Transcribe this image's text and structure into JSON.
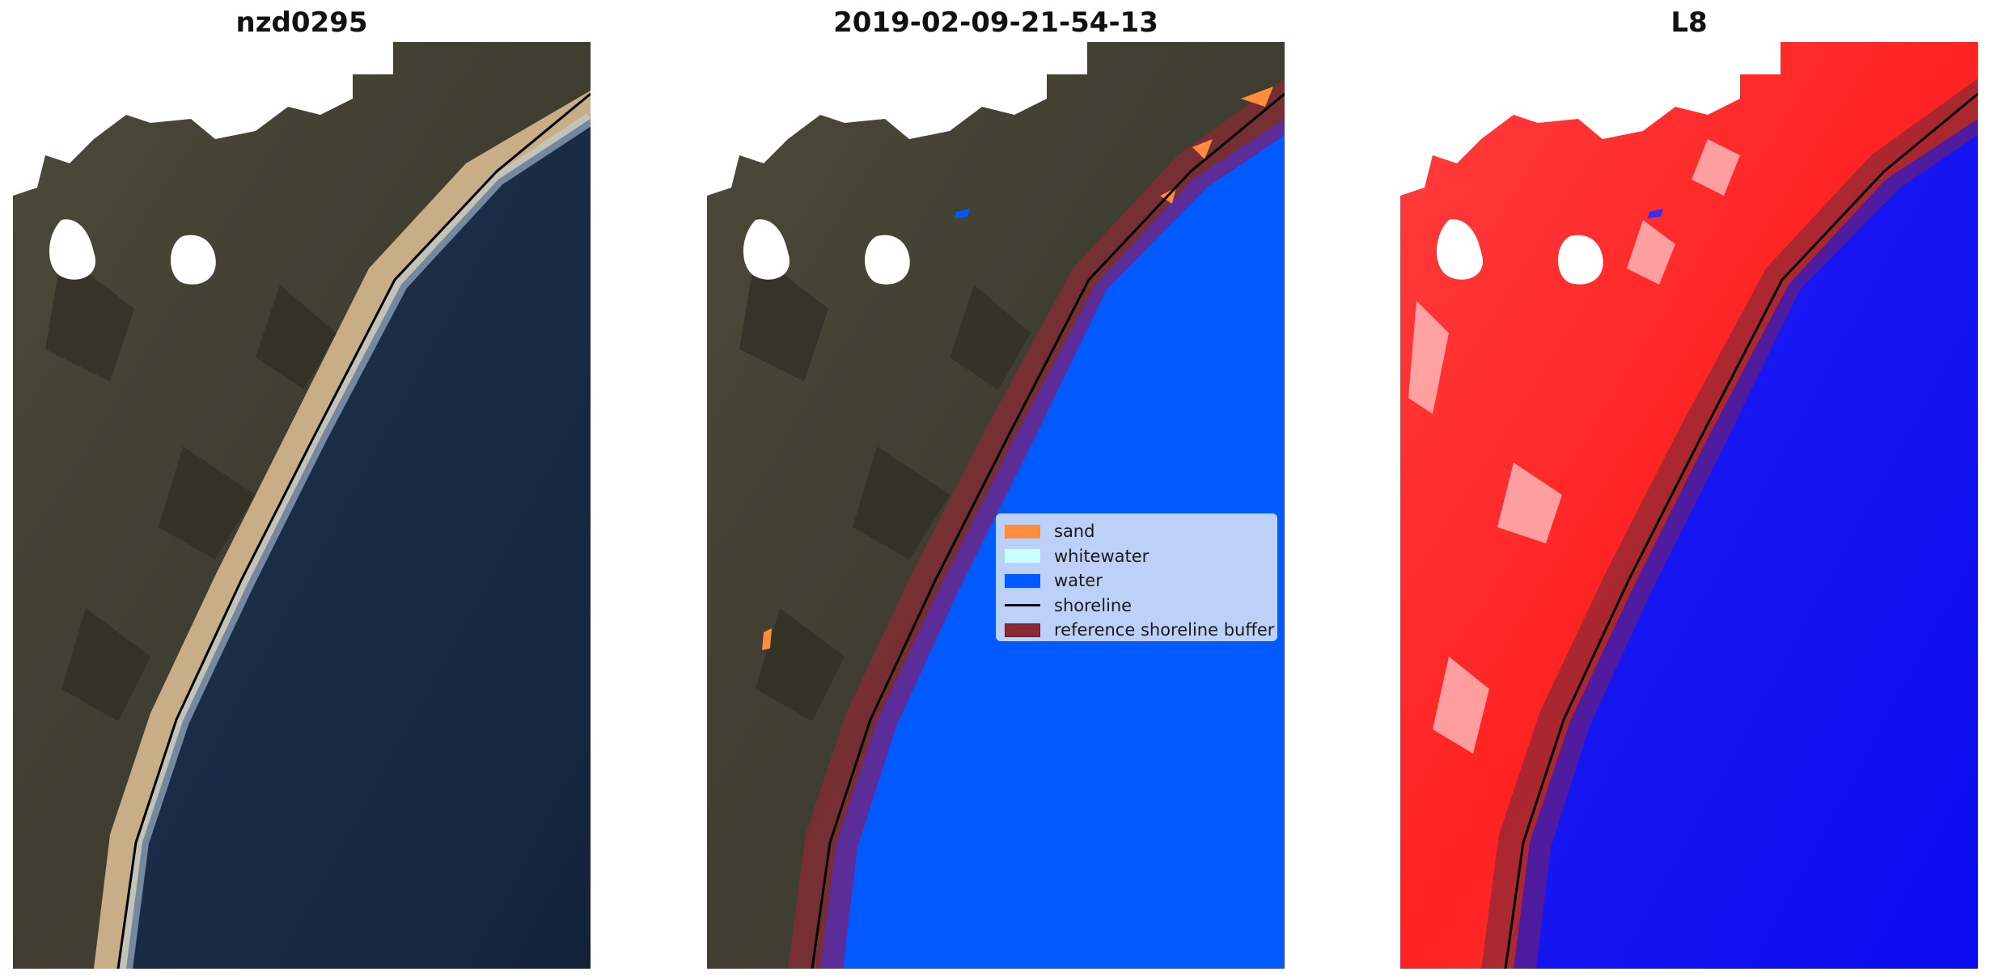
{
  "panels": [
    {
      "title": "nzd0295",
      "kind": "rgb"
    },
    {
      "title": "2019-02-09-21-54-13",
      "kind": "classification"
    },
    {
      "title": "L8",
      "kind": "index"
    }
  ],
  "legend": {
    "items": [
      {
        "label": "sand",
        "color": "#ff8c3c",
        "style": "patch"
      },
      {
        "label": "whitewater",
        "color": "#c8ffff",
        "style": "patch"
      },
      {
        "label": "water",
        "color": "#005aff",
        "style": "patch"
      },
      {
        "label": "shoreline",
        "color": "#000000",
        "style": "line"
      },
      {
        "label": "reference shoreline buffer",
        "color": "#8b2a34",
        "style": "patch"
      }
    ]
  },
  "colors": {
    "land": "#474434",
    "ocean": "#172a44",
    "beach_sand": "#c8ad86",
    "class_water": "#005aff",
    "class_sand": "#ff8c3c",
    "buffer": "#8b2a34",
    "index_positive": "#ff2a2a",
    "index_negative": "#1010f0",
    "no_data": "#ffffff"
  }
}
